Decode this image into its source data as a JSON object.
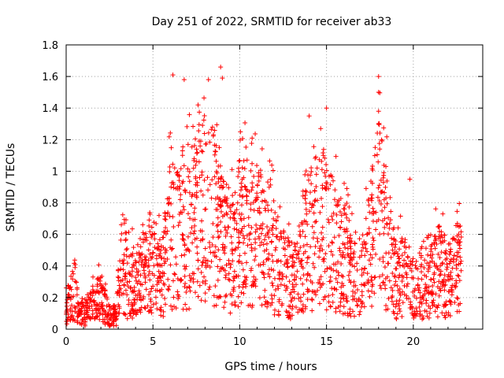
{
  "chart_data": {
    "type": "scatter",
    "title": "Day 251 of 2022, SRMTID for receiver ab33",
    "xlabel": "GPS time / hours",
    "ylabel": "SRMTID / TECUs",
    "xlim": [
      0,
      24
    ],
    "ylim": [
      0,
      1.8
    ],
    "xticks": [
      0,
      5,
      10,
      15,
      20
    ],
    "xtick_labels": [
      "0",
      "5",
      "10",
      "15",
      "20"
    ],
    "yticks": [
      0,
      0.2,
      0.4,
      0.6,
      0.8,
      1.0,
      1.2,
      1.4,
      1.6,
      1.8
    ],
    "ytick_labels": [
      "0",
      "0.2",
      "0.4",
      "0.6",
      "0.8",
      "1",
      "1.2",
      "1.4",
      "1.6",
      "1.8"
    ],
    "grid": true,
    "marker": "+",
    "color": "#ff0000",
    "series": [
      {
        "name": "SRMTID",
        "envelope_points": [
          [
            0.0,
            0.14
          ],
          [
            0.3,
            0.2
          ],
          [
            0.5,
            0.25
          ],
          [
            0.7,
            0.12
          ],
          [
            1.0,
            0.09
          ],
          [
            1.5,
            0.15
          ],
          [
            2.0,
            0.2
          ],
          [
            2.5,
            0.08
          ],
          [
            2.9,
            0.1
          ],
          [
            3.2,
            0.45
          ],
          [
            3.6,
            0.28
          ],
          [
            4.0,
            0.3
          ],
          [
            4.5,
            0.35
          ],
          [
            5.0,
            0.42
          ],
          [
            5.5,
            0.3
          ],
          [
            6.0,
            0.6
          ],
          [
            6.5,
            0.55
          ],
          [
            7.0,
            0.62
          ],
          [
            7.5,
            0.7
          ],
          [
            8.0,
            0.8
          ],
          [
            8.5,
            0.7
          ],
          [
            9.0,
            0.55
          ],
          [
            9.5,
            0.45
          ],
          [
            10.0,
            0.6
          ],
          [
            10.5,
            0.62
          ],
          [
            11.0,
            0.6
          ],
          [
            11.5,
            0.55
          ],
          [
            12.0,
            0.45
          ],
          [
            12.5,
            0.35
          ],
          [
            13.0,
            0.3
          ],
          [
            13.5,
            0.4
          ],
          [
            14.0,
            0.55
          ],
          [
            14.5,
            0.65
          ],
          [
            15.0,
            0.6
          ],
          [
            15.5,
            0.55
          ],
          [
            16.0,
            0.45
          ],
          [
            16.5,
            0.4
          ],
          [
            17.0,
            0.3
          ],
          [
            17.5,
            0.5
          ],
          [
            18.0,
            0.75
          ],
          [
            18.5,
            0.55
          ],
          [
            19.0,
            0.3
          ],
          [
            19.5,
            0.35
          ],
          [
            20.0,
            0.25
          ],
          [
            20.5,
            0.3
          ],
          [
            21.0,
            0.35
          ],
          [
            21.5,
            0.38
          ],
          [
            22.0,
            0.3
          ],
          [
            22.5,
            0.4
          ],
          [
            22.8,
            0.38
          ]
        ],
        "peaks": [
          [
            6.15,
            1.61
          ],
          [
            6.8,
            1.58
          ],
          [
            7.6,
            1.42
          ],
          [
            8.2,
            1.58
          ],
          [
            8.9,
            1.66
          ],
          [
            9.0,
            1.59
          ],
          [
            14.0,
            1.35
          ],
          [
            15.0,
            1.4
          ],
          [
            18.0,
            1.6
          ],
          [
            18.0,
            1.5
          ],
          [
            18.0,
            1.38
          ],
          [
            18.0,
            1.3
          ],
          [
            21.7,
            0.73
          ],
          [
            19.8,
            0.95
          ]
        ]
      }
    ]
  }
}
